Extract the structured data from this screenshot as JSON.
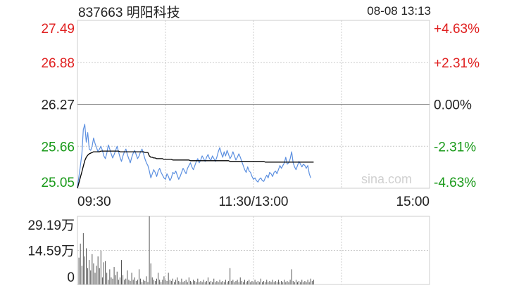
{
  "header": {
    "title": "837663 明阳科技",
    "timestamp": "08-08 13:13"
  },
  "watermark": "sina.com",
  "colors": {
    "up": "#e02020",
    "down": "#1a9a1a",
    "neutral": "#222222",
    "price_line": "#5b8fe0",
    "avg_line": "#000000",
    "grid": "#cccccc",
    "volume": "#555555",
    "watermark": "#d0d0d0"
  },
  "chart_data": [
    {
      "type": "line",
      "name": "intraday-price",
      "x_tick_labels": [
        "09:30",
        "11:30/13:00",
        "15:00"
      ],
      "y_tick_labels": [
        "27.49",
        "26.88",
        "26.27",
        "25.66",
        "25.05"
      ],
      "y_tick_values": [
        27.49,
        26.88,
        26.27,
        25.66,
        25.05
      ],
      "y_tick_colors": [
        "up",
        "up",
        "neutral",
        "down",
        "down"
      ],
      "pct_tick_labels": [
        "+4.63%",
        "+2.31%",
        "0.00%",
        "-2.31%",
        "-4.63%"
      ],
      "ylim": [
        25.05,
        27.49
      ],
      "prev_close": 26.27,
      "total_minutes": 240,
      "grid": true,
      "series": [
        {
          "role": "price",
          "values": [
            25.06,
            25.22,
            25.38,
            25.55,
            25.9,
            25.98,
            25.72,
            25.86,
            25.62,
            25.6,
            25.66,
            25.78,
            25.7,
            25.64,
            25.58,
            25.62,
            25.66,
            25.6,
            25.52,
            25.48,
            25.56,
            25.68,
            25.62,
            25.55,
            25.49,
            25.54,
            25.6,
            25.66,
            25.58,
            25.5,
            25.44,
            25.52,
            25.58,
            25.62,
            25.54,
            25.48,
            25.42,
            25.5,
            25.56,
            25.6,
            25.54,
            25.48,
            25.52,
            25.58,
            25.62,
            25.55,
            25.48,
            25.42,
            25.38,
            25.3,
            25.2,
            25.26,
            25.32,
            25.28,
            25.22,
            25.3,
            25.34,
            25.28,
            25.24,
            25.2,
            25.18,
            25.26,
            25.22,
            25.16,
            25.2,
            25.28,
            25.26,
            25.3,
            25.24,
            25.18,
            25.22,
            25.28,
            25.34,
            25.3,
            25.26,
            25.34,
            25.38,
            25.42,
            25.36,
            25.32,
            25.38,
            25.44,
            25.48,
            25.42,
            25.46,
            25.52,
            25.48,
            25.44,
            25.5,
            25.54,
            25.48,
            25.46,
            25.52,
            25.48,
            25.44,
            25.5,
            25.58,
            25.64,
            25.56,
            25.5,
            25.58,
            25.52,
            25.6,
            25.54,
            25.48,
            25.52,
            25.58,
            25.52,
            25.46,
            25.5,
            25.55,
            25.5,
            25.44,
            25.38,
            25.32,
            25.28,
            25.36,
            25.3,
            25.28,
            25.22,
            25.18,
            25.2,
            25.16,
            25.14,
            25.18,
            25.2,
            25.16,
            25.15,
            25.2,
            25.24,
            25.2,
            25.28,
            25.26,
            25.22,
            25.28,
            25.3,
            25.26,
            25.32,
            25.38,
            25.34,
            25.38,
            25.42,
            25.5,
            25.4,
            25.42,
            25.48,
            25.58,
            25.42,
            25.36,
            25.32,
            25.38,
            25.44,
            25.4,
            25.36,
            25.4,
            25.38,
            25.34,
            25.38,
            25.26,
            25.2
          ],
          "color": "price_line"
        },
        {
          "role": "average",
          "values": [
            25.05,
            25.13,
            25.21,
            25.29,
            25.37,
            25.45,
            25.5,
            25.53,
            25.55,
            25.56,
            25.57,
            25.58,
            25.58,
            25.58,
            25.58,
            25.58,
            25.59,
            25.59,
            25.59,
            25.59,
            25.59,
            25.59,
            25.59,
            25.59,
            25.59,
            25.59,
            25.59,
            25.59,
            25.59,
            25.58,
            25.58,
            25.58,
            25.58,
            25.58,
            25.58,
            25.58,
            25.58,
            25.58,
            25.58,
            25.58,
            25.58,
            25.58,
            25.58,
            25.58,
            25.58,
            25.58,
            25.57,
            25.57,
            25.57,
            25.52,
            25.5,
            25.5,
            25.49,
            25.49,
            25.48,
            25.48,
            25.48,
            25.48,
            25.48,
            25.47,
            25.47,
            25.47,
            25.47,
            25.47,
            25.47,
            25.46,
            25.46,
            25.46,
            25.46,
            25.46,
            25.46,
            25.46,
            25.46,
            25.46,
            25.46,
            25.46,
            25.46,
            25.45,
            25.45,
            25.45,
            25.45,
            25.45,
            25.45,
            25.45,
            25.45,
            25.45,
            25.45,
            25.45,
            25.45,
            25.45,
            25.45,
            25.45,
            25.45,
            25.45,
            25.45,
            25.45,
            25.45,
            25.45,
            25.45,
            25.45,
            25.45,
            25.45,
            25.45,
            25.45,
            25.44,
            25.44,
            25.44,
            25.44,
            25.44,
            25.44,
            25.44,
            25.44,
            25.44,
            25.44,
            25.44,
            25.44,
            25.44,
            25.44,
            25.44,
            25.44,
            25.44,
            25.44,
            25.44,
            25.44,
            25.44,
            25.44,
            25.44,
            25.44,
            25.43,
            25.43,
            25.43,
            25.43,
            25.43,
            25.43,
            25.43,
            25.43,
            25.43,
            25.43,
            25.43,
            25.43,
            25.43,
            25.43,
            25.43,
            25.43,
            25.43,
            25.43,
            25.43,
            25.43,
            25.43,
            25.43,
            25.43,
            25.43,
            25.43,
            25.43,
            25.43,
            25.43,
            25.43,
            25.43,
            25.43,
            25.43,
            25.43,
            25.43
          ],
          "color": "avg_line"
        }
      ]
    },
    {
      "type": "bar",
      "name": "volume",
      "y_tick_labels": [
        "29.19万",
        "14.59万",
        "0"
      ],
      "y_tick_values": [
        29.19,
        14.59,
        0
      ],
      "unit": "万",
      "ylim": [
        0,
        29.19
      ],
      "values": [
        11.5,
        17.5,
        8.0,
        22.0,
        12.0,
        15.5,
        7.0,
        10.5,
        6.0,
        13.0,
        9.0,
        5.0,
        8.0,
        12.0,
        7.0,
        14.5,
        3.0,
        9.5,
        10.0,
        5.0,
        2.0,
        6.5,
        3.0,
        2.5,
        7.5,
        4.0,
        5.5,
        2.0,
        3.0,
        10.5,
        4.0,
        2.0,
        2.5,
        6.0,
        2.0,
        1.5,
        5.0,
        2.0,
        3.0,
        1.5,
        2.0,
        6.5,
        2.5,
        1.0,
        2.0,
        1.5,
        3.5,
        1.0,
        29.19,
        9.0,
        3.0,
        2.0,
        1.5,
        2.5,
        5.0,
        2.0,
        1.0,
        2.0,
        3.5,
        2.0,
        1.5,
        5.0,
        2.0,
        1.5,
        2.5,
        1.0,
        2.0,
        3.0,
        1.5,
        1.0,
        2.5,
        1.0,
        1.5,
        2.0,
        1.0,
        3.0,
        1.5,
        1.0,
        2.0,
        1.5,
        1.0,
        2.5,
        1.0,
        1.5,
        1.0,
        2.0,
        1.0,
        1.5,
        3.0,
        1.0,
        1.5,
        1.0,
        2.5,
        1.0,
        1.5,
        1.0,
        2.0,
        1.0,
        1.5,
        1.0,
        2.0,
        1.0,
        1.5,
        7.0,
        1.5,
        2.0,
        1.0,
        1.5,
        2.0,
        1.0,
        3.0,
        1.5,
        1.0,
        2.0,
        1.0,
        1.5,
        2.0,
        1.0,
        1.5,
        1.0,
        2.0,
        1.0,
        1.5,
        1.0,
        2.5,
        1.0,
        1.5,
        1.0,
        2.0,
        1.0,
        1.5,
        1.0,
        2.0,
        1.0,
        1.5,
        1.0,
        2.0,
        1.0,
        1.5,
        1.0,
        2.0,
        1.0,
        1.5,
        1.0,
        2.0,
        6.5,
        1.5,
        1.0,
        2.0,
        1.0,
        1.5,
        1.0,
        2.0,
        1.0,
        1.5,
        1.0,
        2.0,
        1.0,
        2.5,
        1.5,
        2.0
      ]
    }
  ]
}
